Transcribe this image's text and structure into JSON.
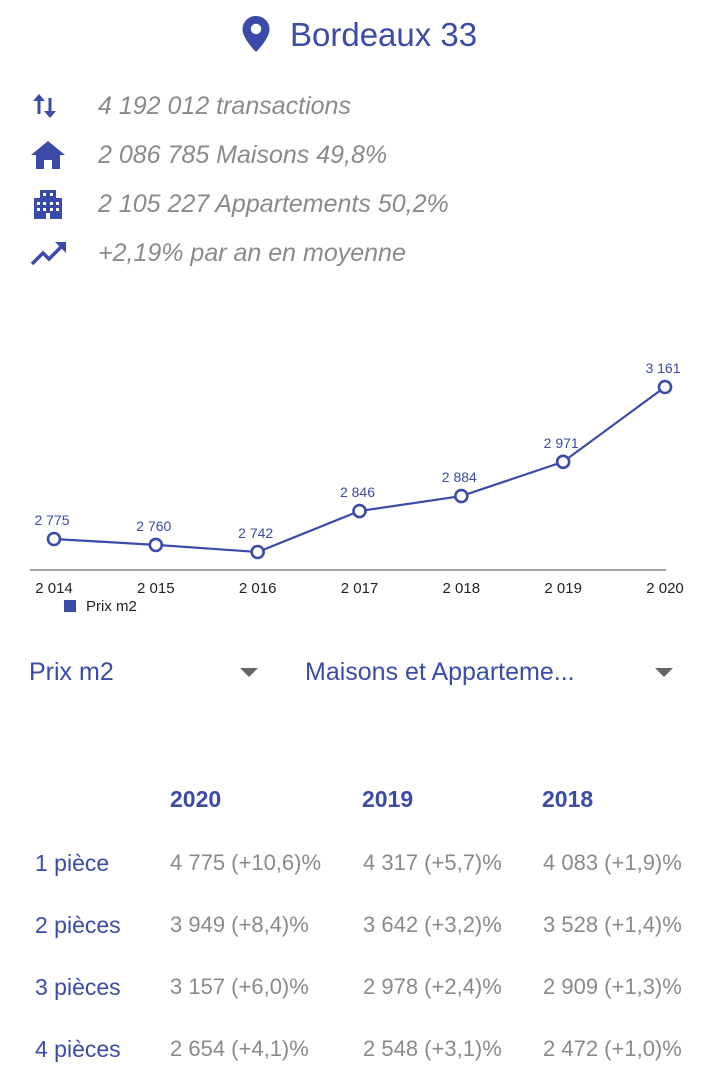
{
  "header": {
    "title": "Bordeaux 33",
    "icon": "location-pin-icon"
  },
  "stats": [
    {
      "icon": "swap-vertical-icon",
      "text": "4 192 012 transactions"
    },
    {
      "icon": "house-icon",
      "text": "2 086 785 Maisons 49,8%"
    },
    {
      "icon": "apartment-building-icon",
      "text": "2 105 227 Appartements 50,2%"
    },
    {
      "icon": "trending-up-icon",
      "text": "+2,19% par an en moyenne"
    }
  ],
  "colors": {
    "accent": "#3b4ba8",
    "muted_text": "#8a8a8a"
  },
  "chart_data": {
    "type": "line",
    "x": [
      "2 014",
      "2 015",
      "2 016",
      "2 017",
      "2 018",
      "2 019",
      "2 020"
    ],
    "series": [
      {
        "name": "Prix m2",
        "values": [
          2775,
          2760,
          2742,
          2846,
          2884,
          2971,
          3161
        ],
        "labels": [
          "2 775",
          "2 760",
          "2 742",
          "2 846",
          "2 884",
          "2 971",
          "3 161"
        ]
      }
    ],
    "legend": "bottom-left",
    "grid": false
  },
  "selectors": {
    "metric": {
      "value": "Prix m2"
    },
    "property_type": {
      "value": "Maisons et Apparteme..."
    }
  },
  "table": {
    "headers": [
      "2020",
      "2019",
      "2018"
    ],
    "rows": [
      {
        "label": "1 pièce",
        "cells": [
          "4 775 (+10,6)%",
          "4 317 (+5,7)%",
          "4 083 (+1,9)%"
        ]
      },
      {
        "label": "2 pièces",
        "cells": [
          "3 949 (+8,4)%",
          "3 642 (+3,2)%",
          "3 528 (+1,4)%"
        ]
      },
      {
        "label": "3 pièces",
        "cells": [
          "3 157 (+6,0)%",
          "2 978 (+2,4)%",
          "2 909 (+1,3)%"
        ]
      },
      {
        "label": "4 pièces",
        "cells": [
          "2 654 (+4,1)%",
          "2 548 (+3,1)%",
          "2 472 (+1,0)%"
        ]
      }
    ]
  }
}
